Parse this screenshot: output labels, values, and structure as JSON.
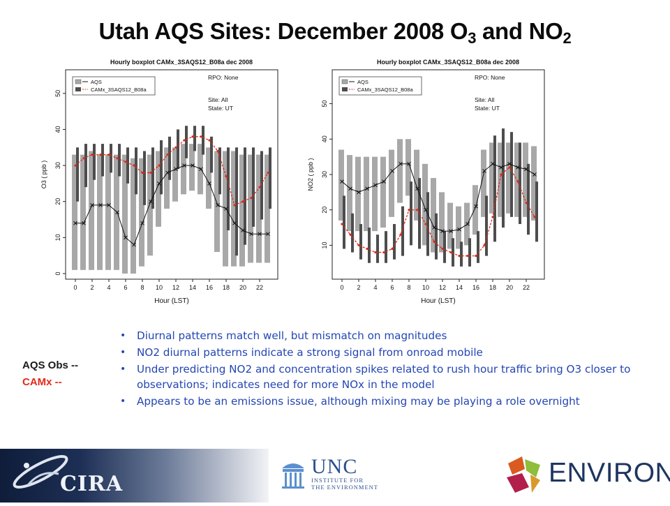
{
  "slide": {
    "title_main": "Utah AQS Sites: December 2008 O",
    "title_sub1": "3",
    "title_mid": " and NO",
    "title_sub2": "2"
  },
  "side_legend": {
    "obs": "AQS Obs --",
    "camx": "CAMx --"
  },
  "bullets": [
    "Diurnal patterns match well, but mismatch on magnitudes",
    "NO2 diurnal patterns indicate a strong signal from onroad mobile",
    "Under predicting NO2 and concentration spikes related to rush hour traffic bring O3 closer to observations; indicates need for more NOx in the model",
    "Appears to be an emissions issue, although mixing may be playing a role overnight"
  ],
  "logos": {
    "cira": "CIRA",
    "unc_big": "UNC",
    "unc_small_1": "INSTITUTE FOR",
    "unc_small_2": "THE ENVIRONMENT",
    "environ": "ENVIRON"
  },
  "colors": {
    "obs_box": "#a8a8a8",
    "model_box": "#4d4d4d",
    "obs_line": "#111111",
    "model_line": "#e02a1a",
    "bullet_text": "#2446b3"
  },
  "chart_data": [
    {
      "type": "box",
      "title": "Hourly boxplot CAMx_3SAQS12_B08a dec 2008",
      "xlabel": "Hour (LST)",
      "ylabel": "O3 ( ppb )",
      "ylim": [
        0,
        55
      ],
      "xticks": [
        0,
        2,
        4,
        6,
        8,
        10,
        12,
        14,
        16,
        18,
        20,
        22
      ],
      "yticks": [
        0,
        10,
        20,
        30,
        40,
        50
      ],
      "legend": [
        "AQS",
        "CAMx_3SAQS12_B08a"
      ],
      "annotations": [
        "RPO: None",
        "Site: All",
        "State: UT"
      ],
      "hours": [
        0,
        1,
        2,
        3,
        4,
        5,
        6,
        7,
        8,
        9,
        10,
        11,
        12,
        13,
        14,
        15,
        16,
        17,
        18,
        19,
        20,
        21,
        22,
        23
      ],
      "obs_median": [
        14,
        14,
        19,
        19,
        19,
        17,
        10,
        8,
        14,
        20,
        25,
        28,
        29,
        30,
        30,
        29,
        25,
        19,
        18,
        14,
        12,
        11,
        11,
        11
      ],
      "model_median": [
        30,
        32,
        33,
        33,
        33,
        32,
        31,
        30,
        28,
        28,
        30,
        33,
        35,
        37,
        38,
        38,
        37,
        34,
        27,
        19,
        20,
        21,
        24,
        28
      ],
      "obs_box": [
        [
          1,
          33
        ],
        [
          1,
          33
        ],
        [
          1,
          34
        ],
        [
          1,
          33
        ],
        [
          1,
          33
        ],
        [
          1,
          33
        ],
        [
          0,
          33
        ],
        [
          0,
          32
        ],
        [
          2,
          32
        ],
        [
          5,
          33
        ],
        [
          13,
          34
        ],
        [
          18,
          35
        ],
        [
          20,
          35
        ],
        [
          22,
          36
        ],
        [
          23,
          36
        ],
        [
          22,
          36
        ],
        [
          18,
          35
        ],
        [
          6,
          34
        ],
        [
          2,
          34
        ],
        [
          2,
          34
        ],
        [
          2,
          33
        ],
        [
          3,
          33
        ],
        [
          3,
          33
        ],
        [
          3,
          33
        ]
      ],
      "model_box": [
        [
          20,
          35
        ],
        [
          24,
          36
        ],
        [
          26,
          36
        ],
        [
          27,
          36
        ],
        [
          28,
          36
        ],
        [
          27,
          36
        ],
        [
          25,
          35
        ],
        [
          22,
          35
        ],
        [
          19,
          34
        ],
        [
          18,
          35
        ],
        [
          22,
          37
        ],
        [
          26,
          38
        ],
        [
          29,
          40
        ],
        [
          32,
          41
        ],
        [
          34,
          41
        ],
        [
          33,
          41
        ],
        [
          28,
          38
        ],
        [
          22,
          35
        ],
        [
          12,
          35
        ],
        [
          5,
          35
        ],
        [
          8,
          35
        ],
        [
          13,
          35
        ],
        [
          15,
          34
        ],
        [
          18,
          35
        ]
      ]
    },
    {
      "type": "box",
      "title": "Hourly boxplot CAMx_3SAQS12_B08a dec 2008",
      "xlabel": "Hour (LST)",
      "ylabel": "NO2 ( ppb )",
      "ylim": [
        2,
        58
      ],
      "xticks": [
        0,
        2,
        4,
        6,
        8,
        10,
        12,
        14,
        16,
        18,
        20,
        22
      ],
      "yticks": [
        10,
        20,
        30,
        40,
        50
      ],
      "legend": [
        "AQS",
        "CAMx_3SAQS12_B08a"
      ],
      "annotations": [
        "RPO: None",
        "Site: All",
        "State: UT"
      ],
      "hours": [
        0,
        1,
        2,
        3,
        4,
        5,
        6,
        7,
        8,
        9,
        10,
        11,
        12,
        13,
        14,
        15,
        16,
        17,
        18,
        19,
        20,
        21,
        22,
        23
      ],
      "obs_median": [
        28,
        26,
        25,
        26,
        27,
        28,
        31,
        33,
        33,
        26,
        20,
        15,
        14,
        14,
        14.5,
        16,
        21,
        31,
        33,
        32,
        33,
        32,
        31.5,
        30
      ],
      "model_median": [
        16,
        13,
        10,
        9,
        8,
        8,
        9,
        13,
        20,
        20,
        16,
        11,
        9,
        8,
        7,
        7,
        7,
        10,
        18,
        30,
        32,
        28,
        22,
        18
      ],
      "obs_box": [
        [
          17,
          37
        ],
        [
          14,
          35.5
        ],
        [
          14,
          35
        ],
        [
          14,
          35
        ],
        [
          14,
          35
        ],
        [
          15,
          35
        ],
        [
          18,
          37
        ],
        [
          22,
          40
        ],
        [
          24,
          40
        ],
        [
          17,
          37
        ],
        [
          10,
          33
        ],
        [
          8,
          29
        ],
        [
          8,
          25
        ],
        [
          9,
          22
        ],
        [
          9,
          21
        ],
        [
          10,
          22
        ],
        [
          13,
          27
        ],
        [
          18,
          37
        ],
        [
          19,
          39
        ],
        [
          18,
          39
        ],
        [
          19,
          39
        ],
        [
          18,
          39
        ],
        [
          18,
          39
        ],
        [
          17,
          38
        ]
      ],
      "model_box": [
        [
          9,
          24
        ],
        [
          8,
          19
        ],
        [
          6,
          16
        ],
        [
          5,
          15
        ],
        [
          5,
          13
        ],
        [
          5,
          14
        ],
        [
          6,
          16
        ],
        [
          7,
          21
        ],
        [
          10,
          28
        ],
        [
          9,
          29
        ],
        [
          7,
          25
        ],
        [
          6,
          19
        ],
        [
          5,
          14
        ],
        [
          4,
          12
        ],
        [
          4,
          11
        ],
        [
          4,
          12
        ],
        [
          5,
          14
        ],
        [
          7,
          24
        ],
        [
          11,
          41
        ],
        [
          15,
          43
        ],
        [
          18,
          42
        ],
        [
          16,
          39
        ],
        [
          13,
          33
        ],
        [
          11,
          28
        ]
      ]
    }
  ]
}
